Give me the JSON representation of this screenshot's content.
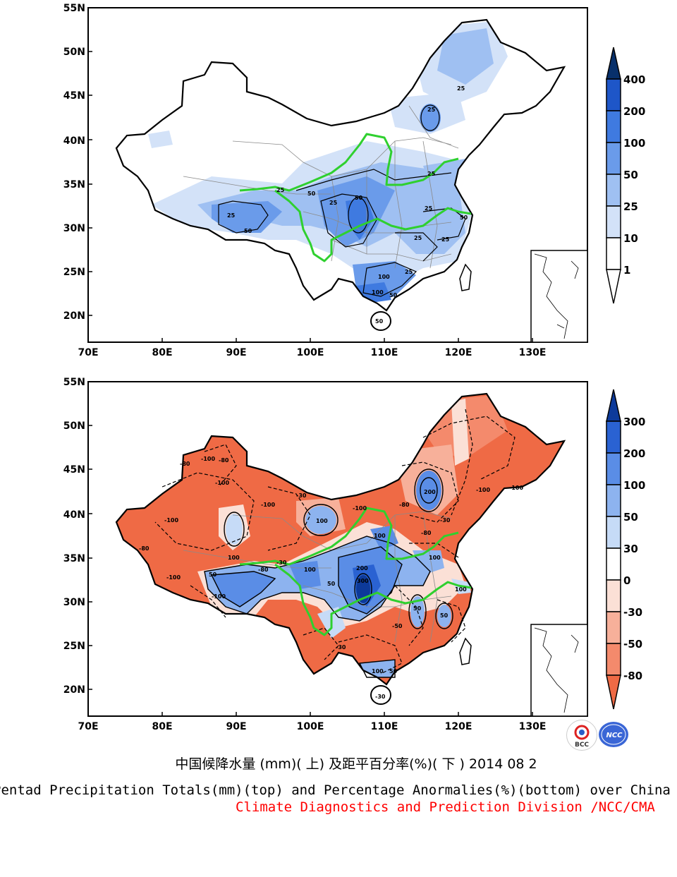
{
  "top_map": {
    "lat_labels": [
      "55N",
      "50N",
      "45N",
      "40N",
      "35N",
      "30N",
      "25N",
      "20N"
    ],
    "lon_labels": [
      "70E",
      "80E",
      "90E",
      "100E",
      "110E",
      "120E",
      "130E"
    ],
    "colorbar_labels": [
      "400",
      "200",
      "100",
      "50",
      "25",
      "10",
      "1"
    ],
    "colorbar_colors": [
      "#08306b",
      "#1e56c8",
      "#3f7ae0",
      "#6a9bea",
      "#9fc0f2",
      "#d3e2f8",
      "#ffffff"
    ],
    "contour_labels": [
      "25",
      "25",
      "50",
      "25",
      "50",
      "25",
      "25",
      "25",
      "25",
      "50",
      "25",
      "25",
      "50",
      "100",
      "25",
      "100",
      "50",
      "50"
    ]
  },
  "bottom_map": {
    "lat_labels": [
      "55N",
      "50N",
      "45N",
      "40N",
      "35N",
      "30N",
      "25N",
      "20N"
    ],
    "lon_labels": [
      "70E",
      "80E",
      "90E",
      "100E",
      "110E",
      "120E",
      "130E"
    ],
    "colorbar_labels": [
      "300",
      "200",
      "100",
      "50",
      "30",
      "0",
      "-30",
      "-50",
      "-80"
    ],
    "colorbar_colors": [
      "#0d3a9a",
      "#2a62d2",
      "#5a8de6",
      "#8db3ef",
      "#c6dbf7",
      "#ffffff",
      "#fbe0d6",
      "#f7b09a",
      "#f48a6c",
      "#ef6a45"
    ],
    "contour_labels": [
      "-100",
      "-80",
      "-100",
      "-80",
      "-100",
      "-100",
      "-30",
      "-100",
      "-80",
      "100",
      "200",
      "-100",
      "-100",
      "200",
      "300",
      "100",
      "100",
      "-80",
      "-30",
      "50",
      "-100",
      "50",
      "100",
      "-80",
      "-30",
      "50",
      "100",
      "50",
      "-100",
      "-80",
      "100",
      "-50",
      "-30",
      "-30",
      "100",
      "50"
    ]
  },
  "captions": {
    "chinese": "中国候降水量 (mm)( 上) 及距平百分率(%)( 下 ) 2014 08 2",
    "english": "Pentad Precipitation Totals(mm)(top) and Percentage Anormalies(%)(bottom) over China",
    "organization": "Climate Diagnostics and Prediction Division /NCC/CMA"
  },
  "colors": {
    "border_line": "#2fd02f",
    "org_text": "#ff0000"
  },
  "logos": [
    "BCC",
    "NCC"
  ]
}
